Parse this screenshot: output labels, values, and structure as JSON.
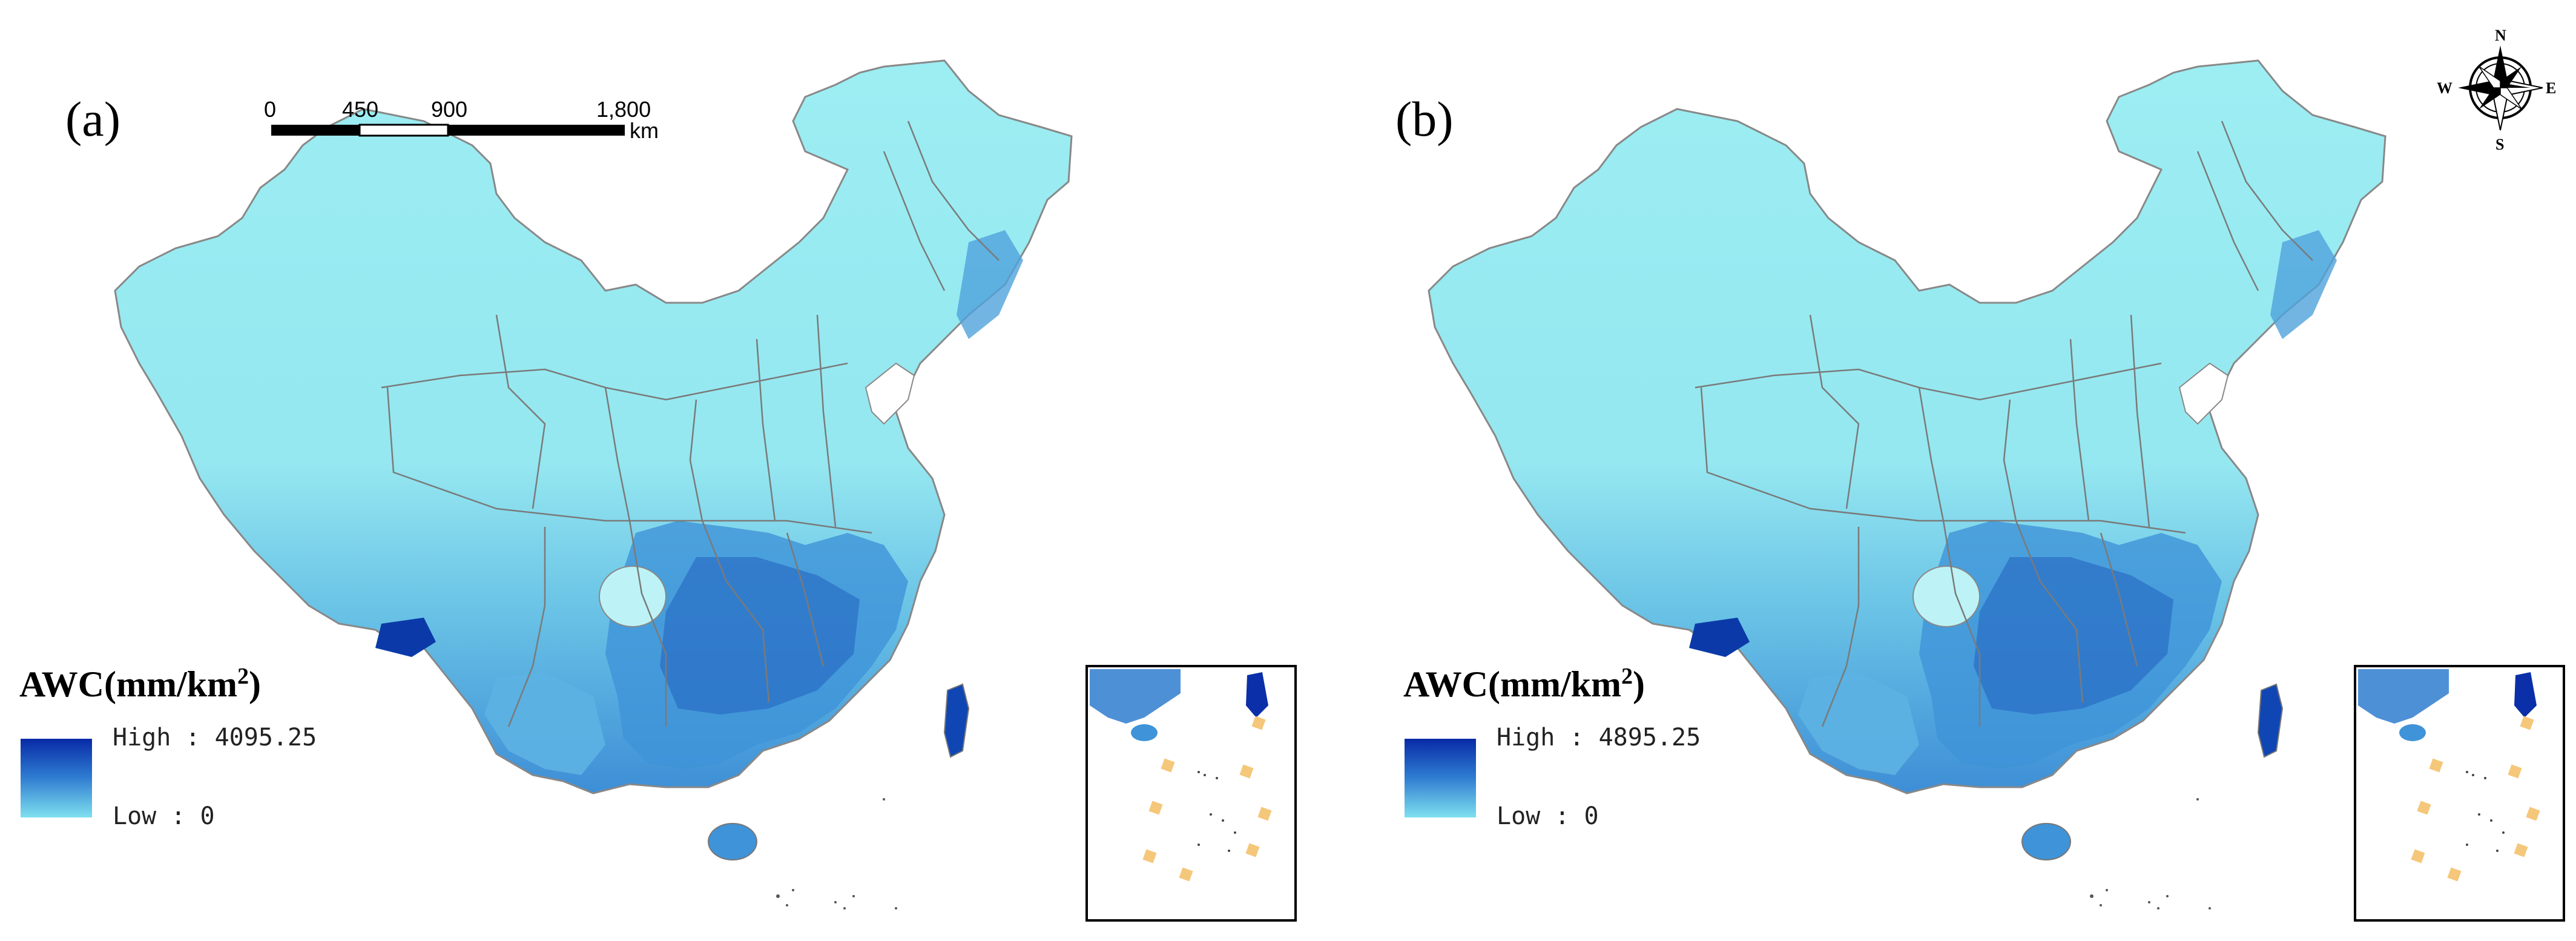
{
  "panels": [
    {
      "label": "(a)",
      "legend_title": "AWC(mm/km",
      "legend_title_sup": "2",
      "legend_title_close": ")",
      "legend_high": "High : 4095.25",
      "legend_low": "Low : 0"
    },
    {
      "label": "(b)",
      "legend_title": "AWC(mm/km",
      "legend_title_sup": "2",
      "legend_title_close": ")",
      "legend_high": "High : 4895.25",
      "legend_low": "Low : 0"
    }
  ],
  "scale_bar": {
    "ticks": [
      "0",
      "450",
      "900",
      "1,800"
    ],
    "unit": "km"
  },
  "compass": {
    "n": "N",
    "s": "S",
    "e": "E",
    "w": "W"
  },
  "colors": {
    "low": "#9beef2",
    "mid": "#4aa6dc",
    "high": "#0a2fa8",
    "boundary": "#7a7a7a"
  }
}
